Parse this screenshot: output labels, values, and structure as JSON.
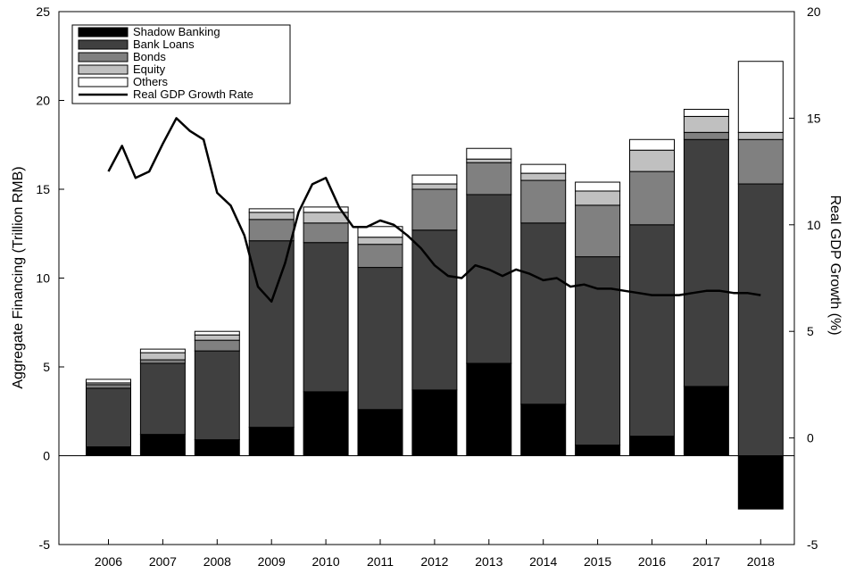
{
  "chart_data": {
    "type": "bar",
    "subtype": "stacked-bar-with-line",
    "categories": [
      "2006",
      "2007",
      "2008",
      "2009",
      "2010",
      "2011",
      "2012",
      "2013",
      "2014",
      "2015",
      "2016",
      "2017",
      "2018"
    ],
    "series": [
      {
        "name": "Shadow Banking",
        "color": "#000000",
        "values": [
          0.5,
          1.2,
          0.9,
          1.6,
          3.6,
          2.6,
          3.7,
          5.2,
          2.9,
          0.6,
          1.1,
          3.9,
          -3.0
        ]
      },
      {
        "name": "Bank Loans",
        "color": "#404040",
        "values": [
          3.3,
          4.0,
          5.0,
          10.5,
          8.4,
          8.0,
          9.0,
          9.5,
          10.2,
          10.6,
          11.9,
          13.9,
          15.3
        ]
      },
      {
        "name": "Bonds",
        "color": "#808080",
        "values": [
          0.2,
          0.2,
          0.6,
          1.2,
          1.1,
          1.3,
          2.3,
          1.8,
          2.4,
          2.9,
          3.0,
          0.4,
          2.5
        ]
      },
      {
        "name": "Equity",
        "color": "#c0c0c0",
        "values": [
          0.1,
          0.4,
          0.3,
          0.4,
          0.6,
          0.4,
          0.3,
          0.2,
          0.4,
          0.8,
          1.2,
          0.9,
          0.4
        ]
      },
      {
        "name": "Others",
        "color": "#ffffff",
        "values": [
          0.2,
          0.2,
          0.2,
          0.2,
          0.3,
          0.6,
          0.5,
          0.6,
          0.5,
          0.5,
          0.6,
          0.4,
          4.0
        ]
      }
    ],
    "line": {
      "name": "Real GDP Growth Rate",
      "axis": "right",
      "x": [
        2006.0,
        2006.25,
        2006.5,
        2006.75,
        2007.0,
        2007.25,
        2007.5,
        2007.75,
        2008.0,
        2008.25,
        2008.5,
        2008.75,
        2009.0,
        2009.25,
        2009.5,
        2009.75,
        2010.0,
        2010.25,
        2010.5,
        2010.75,
        2011.0,
        2011.25,
        2011.5,
        2011.75,
        2012.0,
        2012.25,
        2012.5,
        2012.75,
        2013.0,
        2013.25,
        2013.5,
        2013.75,
        2014.0,
        2014.25,
        2014.5,
        2014.75,
        2015.0,
        2015.25,
        2015.5,
        2015.75,
        2016.0,
        2016.25,
        2016.5,
        2016.75,
        2017.0,
        2017.25,
        2017.5,
        2017.75,
        2018.0
      ],
      "values": [
        12.5,
        13.7,
        12.2,
        12.5,
        13.8,
        15.0,
        14.4,
        14.0,
        11.5,
        10.9,
        9.5,
        7.1,
        6.4,
        8.2,
        10.6,
        11.9,
        12.2,
        10.8,
        9.9,
        9.9,
        10.2,
        10.0,
        9.5,
        8.9,
        8.1,
        7.6,
        7.5,
        8.1,
        7.9,
        7.6,
        7.9,
        7.7,
        7.4,
        7.5,
        7.1,
        7.2,
        7.0,
        7.0,
        6.9,
        6.8,
        6.7,
        6.7,
        6.7,
        6.8,
        6.9,
        6.9,
        6.8,
        6.8,
        6.7
      ]
    },
    "ylabel": "Aggregate Financing (Trillion RMB)",
    "ylabel_right": "Real GDP Growth (%)",
    "ylim": [
      -5,
      25
    ],
    "ylim_right": [
      -5,
      20
    ],
    "yticks": [
      "-5",
      "0",
      "5",
      "10",
      "15",
      "20",
      "25"
    ],
    "yticks_right": [
      "-5",
      "0",
      "5",
      "10",
      "15",
      "20"
    ],
    "legend_position": "top-left",
    "grid": false
  }
}
